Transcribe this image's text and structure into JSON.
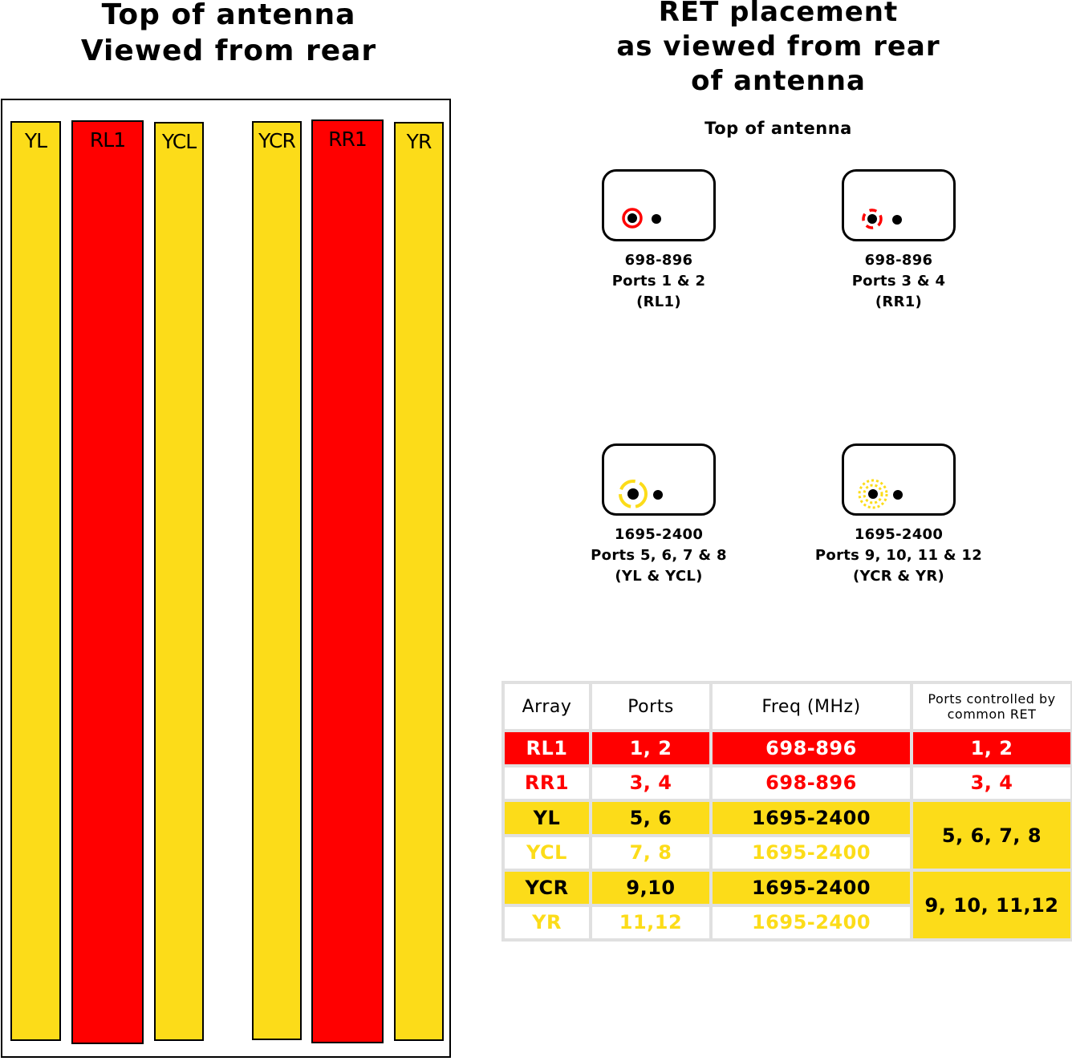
{
  "titles": {
    "left": [
      "Top of antenna",
      "Viewed from rear"
    ],
    "right": [
      "RET placement",
      "as viewed from rear",
      "of antenna"
    ],
    "top_label": "Top of antenna"
  },
  "colors": {
    "red": "#ff0000",
    "yellow": "#fcdc19",
    "outline": "#000000"
  },
  "columns": [
    {
      "label": "YL",
      "color": "yellow"
    },
    {
      "label": "RL1",
      "color": "red"
    },
    {
      "label": "YCL",
      "color": "yellow"
    },
    {
      "label": "YCR",
      "color": "yellow"
    },
    {
      "label": "RR1",
      "color": "red"
    },
    {
      "label": "YR",
      "color": "yellow"
    }
  ],
  "ret": [
    {
      "lines": [
        "698-896",
        "Ports 1 & 2",
        "(RL1)"
      ],
      "ring_style": "solid-red"
    },
    {
      "lines": [
        "698-896",
        "Ports 3 & 4",
        "(RR1)"
      ],
      "ring_style": "dashed-red"
    },
    {
      "lines": [
        "1695-2400",
        "Ports 5, 6, 7 & 8",
        "(YL & YCL)"
      ],
      "ring_style": "dashed-yellow"
    },
    {
      "lines": [
        "1695-2400",
        "Ports 9, 10, 11 & 12",
        "(YCR & YR)"
      ],
      "ring_style": "dotted-yellow"
    }
  ],
  "table": {
    "headers": [
      "Array",
      "Ports",
      "Freq (MHz)",
      "Ports controlled by common RET"
    ],
    "rows": [
      {
        "array": "RL1",
        "ports": "1, 2",
        "freq": "698-896",
        "common": "1, 2"
      },
      {
        "array": "RR1",
        "ports": "3, 4",
        "freq": "698-896",
        "common": "3, 4"
      },
      {
        "array": "YL",
        "ports": "5, 6",
        "freq": "1695-2400",
        "common": "5, 6, 7, 8"
      },
      {
        "array": "YCL",
        "ports": "7, 8",
        "freq": "1695-2400"
      },
      {
        "array": "YCR",
        "ports": "9,10",
        "freq": "1695-2400",
        "common": "9, 10, 11,12"
      },
      {
        "array": "YR",
        "ports": "11,12",
        "freq": "1695-2400"
      }
    ]
  }
}
